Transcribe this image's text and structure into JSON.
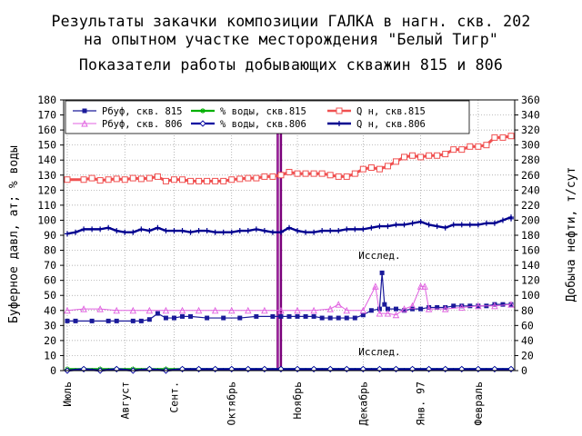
{
  "chart_data": {
    "type": "line",
    "title_lines": [
      "Результаты закачки композиции ГАЛКА в нагн. скв. 202",
      "на опытном участке месторождения \"Белый Тигр\"",
      "Показатели работы добывающих скважин 815 и 806"
    ],
    "ylabel_left": "Буферное давл, ат; % воды",
    "ylabel_right": "Добыча нефти, т/сут",
    "ylim_left": [
      0,
      180
    ],
    "ylim_right": [
      0,
      360
    ],
    "y_ticks_left": [
      0,
      10,
      20,
      30,
      40,
      50,
      60,
      70,
      80,
      90,
      100,
      110,
      120,
      130,
      140,
      150,
      160,
      170,
      180
    ],
    "y_ticks_right": [
      0,
      20,
      40,
      60,
      80,
      100,
      120,
      140,
      160,
      180,
      200,
      220,
      240,
      260,
      280,
      300,
      320,
      340,
      360
    ],
    "x_range": [
      0,
      54
    ],
    "x_tick_labels": [
      {
        "label": "Июль",
        "x": 0
      },
      {
        "label": "Август",
        "x": 7
      },
      {
        "label": "Сент.",
        "x": 13
      },
      {
        "label": "Октябрь",
        "x": 20
      },
      {
        "label": "Ноябрь",
        "x": 28
      },
      {
        "label": "Декабрь",
        "x": 36
      },
      {
        "label": "Янв. 97",
        "x": 43
      },
      {
        "label": "Февраль",
        "x": 50
      }
    ],
    "grid": true,
    "legend_position": "top-left",
    "event_line": {
      "x": 25.8,
      "color": "#7a007a"
    },
    "annotations": [
      {
        "text": "Исслед.",
        "x": 38,
        "y": 67,
        "axis": "left"
      },
      {
        "text": "Исслед.",
        "x": 38,
        "y": 3,
        "axis": "left"
      }
    ],
    "series": [
      {
        "name": "Pбуф, скв. 815",
        "axis": "left",
        "color": "#1a1a9a",
        "marker": "square",
        "points": [
          [
            0,
            33
          ],
          [
            1,
            33
          ],
          [
            3,
            33
          ],
          [
            5,
            33
          ],
          [
            6,
            33
          ],
          [
            8,
            33
          ],
          [
            9,
            33
          ],
          [
            10,
            34
          ],
          [
            11,
            38
          ],
          [
            12,
            35
          ],
          [
            13,
            35
          ],
          [
            14,
            36
          ],
          [
            15,
            36
          ],
          [
            17,
            35
          ],
          [
            19,
            35
          ],
          [
            21,
            35
          ],
          [
            23,
            36
          ],
          [
            25,
            36
          ],
          [
            26,
            36
          ],
          [
            27,
            36
          ],
          [
            28,
            36
          ],
          [
            29,
            36
          ],
          [
            30,
            36
          ],
          [
            31,
            35
          ],
          [
            32,
            35
          ],
          [
            33,
            35
          ],
          [
            34,
            35
          ],
          [
            35,
            35
          ],
          [
            36,
            37
          ],
          [
            37,
            40
          ],
          [
            38,
            41
          ],
          [
            38.3,
            65
          ],
          [
            38.6,
            44
          ],
          [
            39,
            41
          ],
          [
            40,
            41
          ],
          [
            41,
            40
          ],
          [
            42,
            41
          ],
          [
            43,
            41
          ],
          [
            44,
            42
          ],
          [
            45,
            42
          ],
          [
            46,
            42
          ],
          [
            47,
            43
          ],
          [
            48,
            43
          ],
          [
            49,
            43
          ],
          [
            50,
            43
          ],
          [
            51,
            43
          ],
          [
            52,
            44
          ],
          [
            53,
            44
          ],
          [
            54,
            44
          ]
        ]
      },
      {
        "name": "Pбуф, скв. 806",
        "axis": "left",
        "color": "#e060e0",
        "marker": "triangle",
        "points": [
          [
            0,
            40
          ],
          [
            2,
            41
          ],
          [
            4,
            41
          ],
          [
            6,
            40
          ],
          [
            8,
            40
          ],
          [
            10,
            40
          ],
          [
            12,
            40
          ],
          [
            14,
            40
          ],
          [
            16,
            40
          ],
          [
            18,
            40
          ],
          [
            20,
            40
          ],
          [
            22,
            40
          ],
          [
            24,
            40
          ],
          [
            26,
            40
          ],
          [
            28,
            40
          ],
          [
            30,
            40
          ],
          [
            32,
            41
          ],
          [
            33,
            44
          ],
          [
            34,
            40
          ],
          [
            36,
            40
          ],
          [
            37.5,
            56
          ],
          [
            38,
            38
          ],
          [
            39,
            38
          ],
          [
            40,
            37
          ],
          [
            41,
            41
          ],
          [
            42,
            43
          ],
          [
            43,
            56
          ],
          [
            43.5,
            56
          ],
          [
            44,
            41
          ],
          [
            46,
            41
          ],
          [
            48,
            42
          ],
          [
            50,
            43
          ],
          [
            52,
            43
          ],
          [
            54,
            44
          ]
        ]
      },
      {
        "name": "% воды, скв.815",
        "axis": "left",
        "color": "#00b000",
        "marker": "star",
        "points": [
          [
            0,
            1
          ],
          [
            2,
            1
          ],
          [
            4,
            1
          ],
          [
            6,
            1
          ],
          [
            8,
            1
          ],
          [
            10,
            1
          ],
          [
            12,
            1
          ],
          [
            14,
            1
          ],
          [
            16,
            1
          ],
          [
            18,
            1
          ],
          [
            20,
            1
          ],
          [
            22,
            1
          ],
          [
            24,
            1
          ],
          [
            26,
            1
          ],
          [
            28,
            1
          ],
          [
            30,
            1
          ],
          [
            32,
            1
          ],
          [
            34,
            1
          ],
          [
            36,
            1
          ],
          [
            38,
            1
          ],
          [
            40,
            1
          ],
          [
            42,
            1
          ],
          [
            44,
            1
          ],
          [
            46,
            1
          ],
          [
            48,
            1
          ],
          [
            50,
            1
          ],
          [
            52,
            1
          ],
          [
            54,
            1
          ]
        ]
      },
      {
        "name": "% воды, скв.806",
        "axis": "left",
        "color": "#0000a0",
        "marker": "diamond",
        "points": [
          [
            0,
            0
          ],
          [
            2,
            1
          ],
          [
            4,
            0
          ],
          [
            6,
            1
          ],
          [
            8,
            0
          ],
          [
            10,
            1
          ],
          [
            12,
            0
          ],
          [
            14,
            1
          ],
          [
            16,
            1
          ],
          [
            18,
            1
          ],
          [
            20,
            1
          ],
          [
            22,
            1
          ],
          [
            24,
            1
          ],
          [
            26,
            1
          ],
          [
            28,
            1
          ],
          [
            30,
            1
          ],
          [
            32,
            1
          ],
          [
            34,
            1
          ],
          [
            36,
            1
          ],
          [
            38,
            1
          ],
          [
            40,
            1
          ],
          [
            42,
            1
          ],
          [
            44,
            1
          ],
          [
            46,
            1
          ],
          [
            48,
            1
          ],
          [
            50,
            1
          ],
          [
            52,
            1
          ],
          [
            54,
            1
          ]
        ]
      },
      {
        "name": "Q н, скв.815",
        "axis": "right",
        "color": "#f05050",
        "marker": "square-open",
        "points": [
          [
            0,
            254
          ],
          [
            2,
            254
          ],
          [
            3,
            256
          ],
          [
            4,
            253
          ],
          [
            5,
            254
          ],
          [
            6,
            255
          ],
          [
            7,
            254
          ],
          [
            8,
            256
          ],
          [
            9,
            255
          ],
          [
            10,
            256
          ],
          [
            11,
            258
          ],
          [
            12,
            252
          ],
          [
            13,
            254
          ],
          [
            14,
            254
          ],
          [
            15,
            252
          ],
          [
            16,
            252
          ],
          [
            17,
            252
          ],
          [
            18,
            252
          ],
          [
            19,
            252
          ],
          [
            20,
            254
          ],
          [
            21,
            255
          ],
          [
            22,
            256
          ],
          [
            23,
            256
          ],
          [
            24,
            258
          ],
          [
            25,
            258
          ],
          [
            26,
            260
          ],
          [
            27,
            264
          ],
          [
            28,
            262
          ],
          [
            29,
            262
          ],
          [
            30,
            262
          ],
          [
            31,
            262
          ],
          [
            32,
            260
          ],
          [
            33,
            258
          ],
          [
            34,
            258
          ],
          [
            35,
            262
          ],
          [
            36,
            268
          ],
          [
            37,
            270
          ],
          [
            38,
            268
          ],
          [
            39,
            272
          ],
          [
            40,
            278
          ],
          [
            41,
            284
          ],
          [
            42,
            286
          ],
          [
            43,
            284
          ],
          [
            44,
            286
          ],
          [
            45,
            286
          ],
          [
            46,
            288
          ],
          [
            47,
            294
          ],
          [
            48,
            294
          ],
          [
            49,
            298
          ],
          [
            50,
            298
          ],
          [
            51,
            300
          ],
          [
            52,
            310
          ],
          [
            53,
            310
          ],
          [
            54,
            312
          ]
        ]
      },
      {
        "name": "Q н, скв.806",
        "axis": "right",
        "color": "#00008f",
        "marker": "cross",
        "points": [
          [
            0,
            182
          ],
          [
            1,
            184
          ],
          [
            2,
            188
          ],
          [
            3,
            188
          ],
          [
            4,
            188
          ],
          [
            5,
            190
          ],
          [
            6,
            186
          ],
          [
            7,
            184
          ],
          [
            8,
            184
          ],
          [
            9,
            188
          ],
          [
            10,
            186
          ],
          [
            11,
            190
          ],
          [
            12,
            186
          ],
          [
            13,
            186
          ],
          [
            14,
            186
          ],
          [
            15,
            184
          ],
          [
            16,
            186
          ],
          [
            17,
            186
          ],
          [
            18,
            184
          ],
          [
            19,
            184
          ],
          [
            20,
            184
          ],
          [
            21,
            186
          ],
          [
            22,
            186
          ],
          [
            23,
            188
          ],
          [
            24,
            186
          ],
          [
            25,
            184
          ],
          [
            26,
            184
          ],
          [
            27,
            190
          ],
          [
            28,
            186
          ],
          [
            29,
            184
          ],
          [
            30,
            184
          ],
          [
            31,
            186
          ],
          [
            32,
            186
          ],
          [
            33,
            186
          ],
          [
            34,
            188
          ],
          [
            35,
            188
          ],
          [
            36,
            188
          ],
          [
            37,
            190
          ],
          [
            38,
            192
          ],
          [
            39,
            192
          ],
          [
            40,
            194
          ],
          [
            41,
            194
          ],
          [
            42,
            196
          ],
          [
            43,
            198
          ],
          [
            44,
            194
          ],
          [
            45,
            192
          ],
          [
            46,
            190
          ],
          [
            47,
            194
          ],
          [
            48,
            194
          ],
          [
            49,
            194
          ],
          [
            50,
            194
          ],
          [
            51,
            196
          ],
          [
            52,
            196
          ],
          [
            53,
            200
          ],
          [
            54,
            204
          ],
          [
            55,
            202
          ]
        ]
      }
    ]
  }
}
